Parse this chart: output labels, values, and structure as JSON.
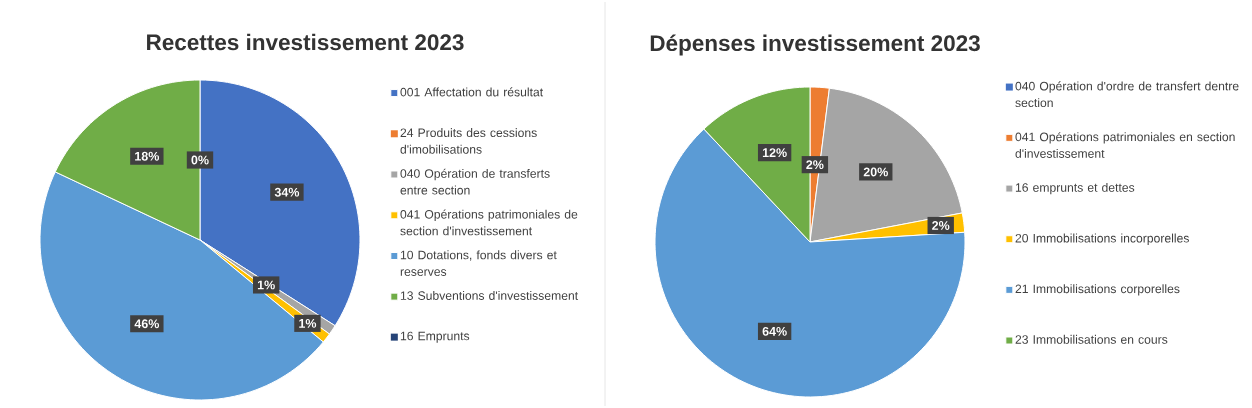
{
  "chart_data": [
    {
      "type": "pie",
      "title": "Recettes investissement 2023",
      "legend": "right",
      "categories": [
        "001 Affectation du résultat",
        "24 Produits des cessions d'imobilisations",
        "040 Opération de transferts entre section",
        "041 Opérations patrimoniales de section d'investissement",
        "10 Dotations, fonds divers et reserves",
        "13 Subventions d'investissement",
        "16 Emprunts"
      ],
      "values": [
        34,
        0,
        1,
        1,
        46,
        18,
        0
      ],
      "colors": [
        "#4472c4",
        "#ed7d31",
        "#a5a5a5",
        "#ffc000",
        "#5b9bd5",
        "#70ad47",
        "#264478"
      ],
      "value_labels": [
        "34%",
        null,
        "1%",
        "1%",
        "46%",
        "18%",
        "0%"
      ]
    },
    {
      "type": "pie",
      "title": "Dépenses investissement 2023",
      "legend": "right",
      "categories": [
        "040 Opération d'ordre de transfert dentre section",
        "041 Opérations patrimoniales en section d'investissement",
        "16 emprunts et dettes",
        "20 Immobilisations incorporelles",
        "21 Immobilisations corporelles",
        "23 Immobilisations en cours"
      ],
      "values": [
        0,
        2,
        20,
        2,
        64,
        12
      ],
      "colors": [
        "#4472c4",
        "#ed7d31",
        "#a5a5a5",
        "#ffc000",
        "#5b9bd5",
        "#70ad47"
      ],
      "value_labels": [
        null,
        "2%",
        "20%",
        "2%",
        "64%",
        "12%"
      ]
    }
  ]
}
